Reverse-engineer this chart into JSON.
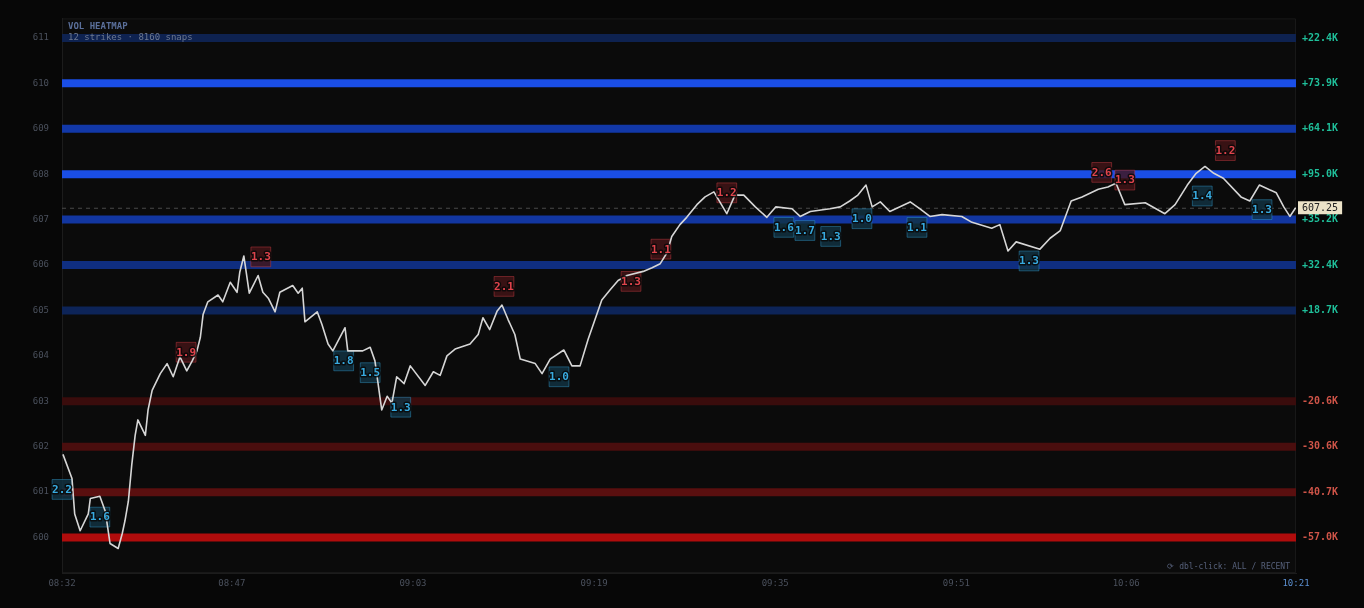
{
  "chart_data": {
    "type": "line",
    "title": "VOL HEATMAP",
    "subtitle": "12 strikes · 8160 snaps",
    "annotations": [
      "⟳ dbl-click: ALL / RECENT",
      {
        "text": "1.9",
        "x": 8.716,
        "y": 604.08
      },
      {
        "text": "1.3",
        "x": 8.826,
        "y": 606.18
      },
      {
        "text": "2.1",
        "x": 9.184,
        "y": 605.53
      },
      {
        "text": "1.3",
        "x": 9.371,
        "y": 605.64
      },
      {
        "text": "1.1",
        "x": 9.415,
        "y": 606.35
      },
      {
        "text": "1.2",
        "x": 9.512,
        "y": 607.59
      },
      {
        "text": "2.6",
        "x": 10.064,
        "y": 608.04
      },
      {
        "text": "1.3",
        "x": 10.098,
        "y": 607.87
      },
      {
        "text": "1.2",
        "x": 10.246,
        "y": 608.52
      },
      {
        "text": "2.2",
        "x": 8.5333,
        "y": 601.06
      },
      {
        "text": "1.6",
        "x": 8.589,
        "y": 600.45
      },
      {
        "text": "1.8",
        "x": 8.948,
        "y": 603.89
      },
      {
        "text": "1.5",
        "x": 8.987,
        "y": 603.63
      },
      {
        "text": "1.3",
        "x": 9.032,
        "y": 602.87
      },
      {
        "text": "1.0",
        "x": 9.265,
        "y": 603.54
      },
      {
        "text": "1.6",
        "x": 9.596,
        "y": 606.83
      },
      {
        "text": "1.7",
        "x": 9.627,
        "y": 606.76
      },
      {
        "text": "1.3",
        "x": 9.665,
        "y": 606.63
      },
      {
        "text": "1.0",
        "x": 9.711,
        "y": 607.02
      },
      {
        "text": "1.1",
        "x": 9.792,
        "y": 606.83
      },
      {
        "text": "1.3",
        "x": 9.957,
        "y": 606.09
      },
      {
        "text": "1.4",
        "x": 10.212,
        "y": 607.52
      },
      {
        "text": "1.3",
        "x": 10.3,
        "y": 607.22
      }
    ],
    "xlim": [
      8.5333,
      10.35
    ],
    "xticks": [
      {
        "value": 8.5333,
        "label": "08:32"
      },
      {
        "value": 8.7833,
        "label": "08:47"
      },
      {
        "value": 9.05,
        "label": "09:03"
      },
      {
        "value": 9.3167,
        "label": "09:19"
      },
      {
        "value": 9.5833,
        "label": "09:35"
      },
      {
        "value": 9.85,
        "label": "09:51"
      },
      {
        "value": 10.1,
        "label": "10:06"
      },
      {
        "value": 10.35,
        "label": "10:21"
      }
    ],
    "ylim": [
      599.22,
      611.43
    ],
    "yticks": [
      600,
      601,
      602,
      603,
      604,
      605,
      606,
      607,
      608,
      609,
      610,
      611
    ],
    "ref_lines": [
      {
        "axis": "y",
        "value": 611,
        "label": "+22.4K",
        "color": "#0e2250"
      },
      {
        "axis": "y",
        "value": 610,
        "label": "+73.9K",
        "color": "#1a4ee6"
      },
      {
        "axis": "y",
        "value": 609,
        "label": "+64.1K",
        "color": "#1238a8"
      },
      {
        "axis": "y",
        "value": 608,
        "label": "+95.0K",
        "color": "#1a4ee6"
      },
      {
        "axis": "y",
        "value": 607,
        "label": "+35.2K",
        "color": "#1236a0"
      },
      {
        "axis": "y",
        "value": 606,
        "label": "+32.4K",
        "color": "#0f2e80"
      },
      {
        "axis": "y",
        "value": 605,
        "label": "+18.7K",
        "color": "#0d2458"
      },
      {
        "axis": "y",
        "value": 603,
        "label": "-20.6K",
        "color": "#3a0c0c"
      },
      {
        "axis": "y",
        "value": 602,
        "label": "-30.6K",
        "color": "#4a0e0e"
      },
      {
        "axis": "y",
        "value": 601,
        "label": "-40.7K",
        "color": "#5a0f0f"
      },
      {
        "axis": "y",
        "value": 600,
        "label": "-57.0K",
        "color": "#b00c0c"
      },
      {
        "axis": "y",
        "value": 607.25,
        "label": "607.25",
        "line_style": "dashed",
        "color": "#4a4a4a"
      }
    ],
    "series": [
      {
        "color": "#d6d6d6",
        "marker": "none",
        "x": [
          8.535,
          8.548,
          8.552,
          8.56,
          8.572,
          8.575,
          8.589,
          8.597,
          8.604,
          8.616,
          8.622,
          8.626,
          8.631,
          8.636,
          8.641,
          8.645,
          8.656,
          8.66,
          8.666,
          8.678,
          8.688,
          8.697,
          8.707,
          8.717,
          8.725,
          8.732,
          8.737,
          8.741,
          8.748,
          8.763,
          8.77,
          8.781,
          8.791,
          8.795,
          8.801,
          8.809,
          8.822,
          8.829,
          8.837,
          8.847,
          8.854,
          8.873,
          8.881,
          8.887,
          8.891,
          8.909,
          8.916,
          8.925,
          8.932,
          8.95,
          8.954,
          8.976,
          8.987,
          8.994,
          9.004,
          9.012,
          9.019,
          9.026,
          9.037,
          9.046,
          9.068,
          9.08,
          9.09,
          9.1,
          9.112,
          9.134,
          9.146,
          9.153,
          9.163,
          9.174,
          9.181,
          9.19,
          9.2,
          9.208,
          9.23,
          9.24,
          9.252,
          9.272,
          9.284,
          9.296,
          9.308,
          9.318,
          9.328,
          9.34,
          9.352,
          9.365,
          9.389,
          9.402,
          9.414,
          9.424,
          9.431,
          9.443,
          9.453,
          9.468,
          9.48,
          9.493,
          9.512,
          9.524,
          9.537,
          9.554,
          9.571,
          9.584,
          9.608,
          9.62,
          9.635,
          9.664,
          9.679,
          9.693,
          9.705,
          9.717,
          9.726,
          9.738,
          9.752,
          9.782,
          9.796,
          9.811,
          9.829,
          9.858,
          9.873,
          9.902,
          9.914,
          9.926,
          9.938,
          9.973,
          9.988,
          10.003,
          10.019,
          10.035,
          10.059,
          10.073,
          10.085,
          10.098,
          10.128,
          10.157,
          10.172,
          10.19,
          10.203,
          10.216,
          10.229,
          10.243,
          10.269,
          10.282,
          10.296,
          10.321,
          10.332,
          10.341,
          10.349
        ],
        "values": [
          601.82,
          601.3,
          600.52,
          600.15,
          600.52,
          600.86,
          600.91,
          600.58,
          599.87,
          599.76,
          600.09,
          600.37,
          600.8,
          601.6,
          602.25,
          602.59,
          602.25,
          602.81,
          603.24,
          603.61,
          603.83,
          603.54,
          603.98,
          603.67,
          603.89,
          604.11,
          604.41,
          604.91,
          605.19,
          605.34,
          605.19,
          605.62,
          605.4,
          605.84,
          606.2,
          605.38,
          605.77,
          605.4,
          605.27,
          604.97,
          605.4,
          605.55,
          605.38,
          605.49,
          604.75,
          604.97,
          604.69,
          604.26,
          604.11,
          604.62,
          604.11,
          604.11,
          604.19,
          603.89,
          602.81,
          603.11,
          602.96,
          603.54,
          603.39,
          603.78,
          603.35,
          603.65,
          603.57,
          604.0,
          604.15,
          604.26,
          604.47,
          604.84,
          604.58,
          604.99,
          605.12,
          604.8,
          604.47,
          603.93,
          603.83,
          603.61,
          603.93,
          604.13,
          603.78,
          603.78,
          604.37,
          604.8,
          605.23,
          605.45,
          605.66,
          605.77,
          605.86,
          605.94,
          606.03,
          606.27,
          606.63,
          606.89,
          607.05,
          607.33,
          607.5,
          607.61,
          607.13,
          607.54,
          607.54,
          607.28,
          607.05,
          607.28,
          607.24,
          607.07,
          607.18,
          607.24,
          607.28,
          607.41,
          607.54,
          607.76,
          607.28,
          607.39,
          607.18,
          607.39,
          607.24,
          607.07,
          607.11,
          607.07,
          606.94,
          606.81,
          606.89,
          606.31,
          606.51,
          606.35,
          606.59,
          606.76,
          607.41,
          607.5,
          607.67,
          607.72,
          607.8,
          607.33,
          607.37,
          607.13,
          607.33,
          607.76,
          608.02,
          608.17,
          608.02,
          607.91,
          607.5,
          607.41,
          607.76,
          607.59,
          607.28,
          607.07,
          607.25
        ]
      },
      {
        "type": "scatter",
        "color": "#e0444c",
        "marker": "square",
        "x": [
          8.716,
          8.826,
          9.184,
          9.371,
          9.415,
          9.512,
          10.064,
          10.098,
          10.246
        ],
        "values": [
          604.08,
          606.18,
          605.53,
          605.64,
          606.35,
          607.59,
          608.04,
          607.87,
          608.52
        ]
      },
      {
        "type": "scatter",
        "color": "#38abe0",
        "marker": "square",
        "x": [
          8.5333,
          8.589,
          8.948,
          8.987,
          9.032,
          9.265,
          9.596,
          9.627,
          9.665,
          9.711,
          9.792,
          9.957,
          10.212,
          10.3
        ],
        "values": [
          601.06,
          600.45,
          603.89,
          603.63,
          602.87,
          603.54,
          606.83,
          606.76,
          606.63,
          607.02,
          606.83,
          606.09,
          607.52,
          607.22
        ]
      }
    ]
  }
}
